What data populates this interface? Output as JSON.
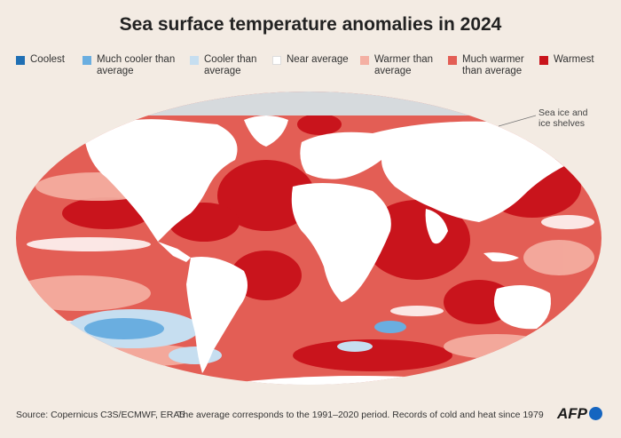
{
  "title": "Sea surface temperature anomalies in 2024",
  "legend": [
    {
      "line1": "Coolest",
      "line2": "",
      "color": "#1f6fb4"
    },
    {
      "line1": "Much cooler than",
      "line2": "average",
      "color": "#6aaee0"
    },
    {
      "line1": "Cooler than",
      "line2": "average",
      "color": "#c6def0"
    },
    {
      "line1": "Near average",
      "line2": "",
      "color": "#ffffff"
    },
    {
      "line1": "Warmer than",
      "line2": "average",
      "color": "#f4b0a3"
    },
    {
      "line1": "Much warmer",
      "line2": "than average",
      "color": "#e35e55"
    },
    {
      "line1": "Warmest",
      "line2": "",
      "color": "#c9141c"
    }
  ],
  "annotation": {
    "line1": "Sea ice and",
    "line2": "ice shelves",
    "color": "#d6dadd"
  },
  "colors": {
    "ocean_warm": "#e35e55",
    "ocean_warmest": "#c9141c",
    "land": "#ffffff",
    "ice": "#d6dadd"
  },
  "footer": {
    "source": "Source: Copernicus C3S/ECMWF, ERA5",
    "note": "The average corresponds to the 1991–2020 period. Records of cold and heat since 1979"
  },
  "logo": "AFP"
}
